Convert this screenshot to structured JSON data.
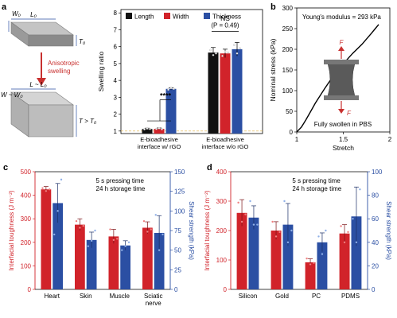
{
  "colors": {
    "black": "#111111",
    "red": "#d1232a",
    "blue": "#2b4fa3",
    "gray_box": "#9a9a9a",
    "arrow": "#c8302f",
    "sample": "#5a5a5a"
  },
  "panel_a_schematic": {
    "panel_label": "a",
    "top_width_label": "W₀",
    "top_length_label": "L₀",
    "top_thickness_label": "T₀",
    "arrow_label_line1": "Anisotropic",
    "arrow_label_line2": "swelling",
    "bottom_width_label": "W ~ W₀",
    "bottom_length_label": "L ~ L₀",
    "bottom_thickness_label": "T > T₀"
  },
  "chart_data": [
    {
      "id": "swelling",
      "type": "bar",
      "ylabel": "Swelling ratio",
      "ylim": [
        0.85,
        8.2
      ],
      "yticks": [
        1,
        2,
        3,
        4,
        5,
        6,
        7,
        8
      ],
      "reference_line": 1,
      "categories": [
        "E-bioadhesive\ninterface w/ rGO",
        "E-bioadhesive\ninterface w/o rGO"
      ],
      "series": [
        {
          "name": "Length",
          "values": [
            1.12,
            5.65
          ],
          "errors": [
            0.05,
            0.3
          ]
        },
        {
          "name": "Width",
          "values": [
            1.13,
            5.6
          ],
          "errors": [
            0.05,
            0.25
          ]
        },
        {
          "name": "Thickness",
          "values": [
            3.5,
            5.85
          ],
          "errors": [
            0.07,
            0.4
          ]
        }
      ],
      "points": [
        [
          [
            1.1,
            1.15,
            1.12
          ],
          [
            1.12,
            1.16,
            1.1
          ],
          [
            3.45,
            3.55,
            3.5
          ]
        ],
        [
          [
            5.8,
            5.5,
            5.6
          ],
          [
            5.45,
            5.7,
            5.65
          ],
          [
            6.1,
            5.6,
            5.9
          ]
        ]
      ],
      "legend_position": "top",
      "annotations": [
        "****",
        "NS",
        "(P = 0.49)"
      ]
    },
    {
      "id": "stress",
      "panel_label": "b",
      "type": "line",
      "xlabel": "Stretch",
      "ylabel": "Nominal stress (kPa)",
      "xlim": [
        1,
        2
      ],
      "ylim": [
        0,
        300
      ],
      "xticks": [
        1,
        1.5,
        2
      ],
      "yticks": [
        0,
        50,
        100,
        150,
        200,
        250,
        300
      ],
      "x": [
        1.0,
        1.05,
        1.1,
        1.15,
        1.2,
        1.3,
        1.4,
        1.5,
        1.6,
        1.7,
        1.8,
        1.85,
        1.88
      ],
      "y": [
        0,
        12,
        30,
        50,
        70,
        105,
        138,
        165,
        190,
        212,
        238,
        252,
        260
      ],
      "annotations": [
        "Young's modulus = 293 kPa",
        "F",
        "F",
        "Fully swollen in PBS"
      ]
    },
    {
      "id": "tissues",
      "panel_label": "c",
      "type": "bar",
      "ylabel": "Interfacial toughness (J m⁻²)",
      "y2label": "Shear strength (kPa)",
      "ylim": [
        0,
        500
      ],
      "y2lim": [
        0,
        150
      ],
      "yticks": [
        0,
        100,
        200,
        300,
        400,
        500
      ],
      "y2ticks": [
        0,
        25,
        50,
        75,
        100,
        125,
        150
      ],
      "categories": [
        "Heart",
        "Skin",
        "Muscle",
        "Sciatic\nnerve"
      ],
      "series": [
        {
          "name": "Interfacial toughness",
          "values": [
            425,
            275,
            225,
            262
          ],
          "errors": [
            12,
            25,
            30,
            25
          ]
        },
        {
          "name": "Shear strength",
          "values": [
            110,
            63,
            56,
            72
          ],
          "errors": [
            25,
            10,
            6,
            22
          ]
        }
      ],
      "points": [
        [
          [
            430,
            418,
            425
          ],
          [
            70,
            100,
            140
          ]
        ],
        [
          [
            290,
            262,
            270
          ],
          [
            55,
            62,
            75
          ]
        ],
        [
          [
            255,
            210,
            215
          ],
          [
            50,
            55,
            60
          ]
        ],
        [
          [
            290,
            245,
            255
          ],
          [
            95,
            50,
            70
          ]
        ]
      ],
      "annotations": [
        "5 s pressing time",
        "24 h storage time"
      ]
    },
    {
      "id": "materials",
      "panel_label": "d",
      "type": "bar",
      "ylabel": "Interfacial toughness (J m⁻²)",
      "y2label": "Shear strength (kPa)",
      "ylim": [
        0,
        400
      ],
      "y2lim": [
        0,
        100
      ],
      "yticks": [
        0,
        100,
        200,
        300,
        400
      ],
      "y2ticks": [
        0,
        20,
        40,
        60,
        80,
        100
      ],
      "categories": [
        "Silicon",
        "Gold",
        "PC",
        "PDMS"
      ],
      "series": [
        {
          "name": "Interfacial toughness",
          "values": [
            260,
            200,
            92,
            190
          ],
          "errors": [
            45,
            30,
            12,
            30
          ]
        },
        {
          "name": "Shear strength",
          "values": [
            61,
            55,
            40,
            62
          ],
          "errors": [
            10,
            18,
            8,
            25
          ]
        }
      ],
      "points": [
        [
          [
            295,
            230,
            255
          ],
          [
            75,
            55,
            55
          ]
        ],
        [
          [
            230,
            180,
            195
          ],
          [
            75,
            40,
            50
          ]
        ],
        [
          [
            105,
            85,
            90
          ],
          [
            45,
            30,
            50
          ]
        ],
        [
          [
            215,
            160,
            195
          ],
          [
            60,
            40,
            85
          ]
        ]
      ],
      "annotations": [
        "5 s pressing time",
        "24 h storage time"
      ]
    }
  ]
}
